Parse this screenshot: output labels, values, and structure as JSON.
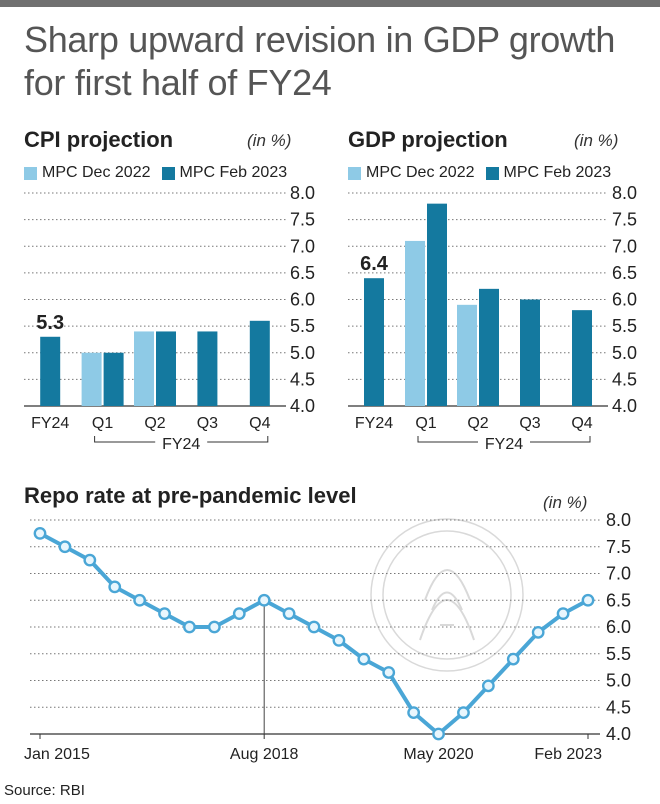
{
  "page": {
    "title": "Sharp upward revision in GDP growth for first half of FY24",
    "source": "Source: RBI"
  },
  "colors": {
    "dec2022": "#8ecae6",
    "feb2023": "#14799f",
    "line": "#4aa6d6",
    "gridline": "#777777",
    "text": "#222222"
  },
  "chart_data": [
    {
      "type": "bar",
      "title": "CPI projection",
      "unit": "(in %)",
      "categories": [
        "FY24",
        "Q1",
        "Q2",
        "Q3",
        "Q4"
      ],
      "group_label": "FY24",
      "series": [
        {
          "name": "MPC Dec 2022",
          "values": [
            null,
            5.0,
            5.4,
            null,
            null
          ]
        },
        {
          "name": "MPC Feb 2023",
          "values": [
            5.3,
            5.0,
            5.4,
            5.4,
            5.6
          ]
        }
      ],
      "data_labels": [
        {
          "category": "FY24",
          "series": "MPC Feb 2023",
          "text": "5.3"
        }
      ],
      "ylim": [
        4.0,
        8.0
      ],
      "yticks": [
        "8.0",
        "7.5",
        "7.0",
        "6.5",
        "6.0",
        "5.5",
        "5.0",
        "4.5",
        "4.0"
      ],
      "grid": true,
      "legend": "top"
    },
    {
      "type": "bar",
      "title": "GDP projection",
      "unit": "(in %)",
      "categories": [
        "FY24",
        "Q1",
        "Q2",
        "Q3",
        "Q4"
      ],
      "group_label": "FY24",
      "series": [
        {
          "name": "MPC Dec 2022",
          "values": [
            null,
            7.1,
            5.9,
            null,
            null
          ]
        },
        {
          "name": "MPC Feb 2023",
          "values": [
            6.4,
            7.8,
            6.2,
            6.0,
            5.8
          ]
        }
      ],
      "data_labels": [
        {
          "category": "FY24",
          "series": "MPC Feb 2023",
          "text": "6.4"
        }
      ],
      "ylim": [
        4.0,
        8.0
      ],
      "yticks": [
        "8.0",
        "7.5",
        "7.0",
        "6.5",
        "6.0",
        "5.5",
        "5.0",
        "4.5",
        "4.0"
      ],
      "grid": true,
      "legend": "top"
    },
    {
      "type": "line",
      "title": "Repo rate at pre-pandemic level",
      "unit": "(in %)",
      "values": [
        7.75,
        7.5,
        7.25,
        6.75,
        6.5,
        6.25,
        6.0,
        6.0,
        6.25,
        6.5,
        6.25,
        6.0,
        5.75,
        5.4,
        5.15,
        4.4,
        4.0,
        4.4,
        4.9,
        5.4,
        5.9,
        6.25,
        6.5
      ],
      "x_tick_labels": [
        {
          "index": 0,
          "label": "Jan 2015"
        },
        {
          "index": 9,
          "label": "Aug 2018"
        },
        {
          "index": 16,
          "label": "May 2020"
        },
        {
          "index": 22,
          "label": "Feb 2023"
        }
      ],
      "ylim": [
        4.0,
        8.0
      ],
      "yticks": [
        "8.0",
        "7.5",
        "7.0",
        "6.5",
        "6.0",
        "5.5",
        "5.0",
        "4.5",
        "4.0"
      ],
      "grid": true
    }
  ]
}
